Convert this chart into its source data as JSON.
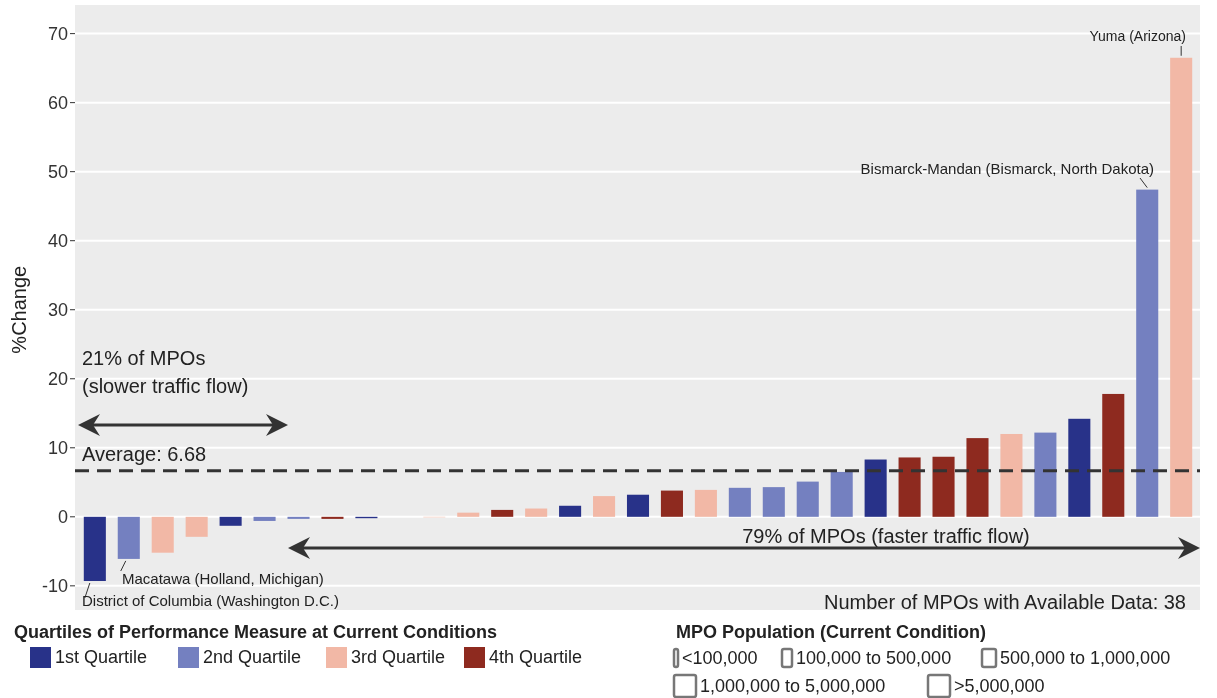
{
  "chart_data": {
    "type": "bar",
    "stacked": true,
    "ylabel": "%Change",
    "legend": "bottom",
    "legend_title": "Quartiles of Performance Measure at Current Conditions",
    "grid": "y",
    "categories": [
      null,
      null,
      null,
      null,
      null,
      null,
      null,
      null,
      null,
      null,
      null,
      null,
      null,
      null,
      null,
      null,
      null,
      null,
      null,
      null,
      null,
      null,
      null,
      null,
      null,
      null,
      null,
      null,
      null,
      null,
      null,
      null,
      null
    ],
    "ylim": [
      -13.5,
      74
    ],
    "yticks": [
      -10,
      0,
      10,
      20,
      30,
      40,
      50,
      60,
      70
    ],
    "series": [
      {
        "name": "1st Quartile",
        "color": "#283289",
        "values": [
          -9.3,
          null,
          null,
          null,
          -1.3,
          null,
          null,
          null,
          -0.2,
          null,
          null,
          null,
          null,
          null,
          1.6,
          null,
          3.2,
          null,
          null,
          null,
          null,
          null,
          null,
          8.3,
          null,
          null,
          null,
          null,
          null,
          14.2,
          null,
          null,
          null
        ]
      },
      {
        "name": "2nd Quartile",
        "color": "#7480c0",
        "values": [
          null,
          -6.1,
          null,
          null,
          null,
          -0.6,
          -0.3,
          null,
          null,
          null,
          null,
          null,
          null,
          null,
          null,
          null,
          null,
          null,
          null,
          4.2,
          4.3,
          5.1,
          6.5,
          null,
          null,
          null,
          null,
          null,
          12.2,
          null,
          null,
          47.4,
          null
        ]
      },
      {
        "name": "3rd Quartile",
        "color": "#f2b8a6",
        "values": [
          null,
          null,
          -5.2,
          -2.9,
          null,
          null,
          null,
          null,
          null,
          null,
          0,
          0.6,
          null,
          1.2,
          null,
          3.0,
          null,
          null,
          3.9,
          null,
          null,
          null,
          null,
          null,
          null,
          null,
          null,
          12.0,
          null,
          null,
          null,
          null,
          66.5
        ]
      },
      {
        "name": "4th Quartile",
        "color": "#8e2a1f",
        "values": [
          null,
          null,
          null,
          null,
          null,
          null,
          null,
          -0.3,
          null,
          null,
          null,
          null,
          1.0,
          null,
          null,
          null,
          null,
          3.8,
          null,
          null,
          null,
          null,
          null,
          null,
          8.6,
          8.7,
          11.4,
          null,
          null,
          null,
          17.8,
          null,
          null
        ]
      }
    ],
    "ref_lines": [
      {
        "axis": "y",
        "value": 6.68,
        "label": "Average: 6.68",
        "color": "#333333",
        "line_style": "dashed"
      }
    ],
    "annotations": [
      "Yuma (Arizona)",
      "Bismarck-Mandan (Bismarck, North Dakota)",
      "Macatawa (Holland, Michigan)",
      "District of Columbia (Washington D.C.)",
      "21% of MPOs",
      "(slower traffic flow)",
      "79% of MPOs (faster traffic flow)",
      "Number of MPOs with Available Data: 38",
      "MPO Population (Current Condition)",
      "<100,000",
      "100,000 to 500,000",
      "500,000 to 1,000,000",
      "1,000,000 to 5,000,000",
      ">5,000,000"
    ]
  }
}
